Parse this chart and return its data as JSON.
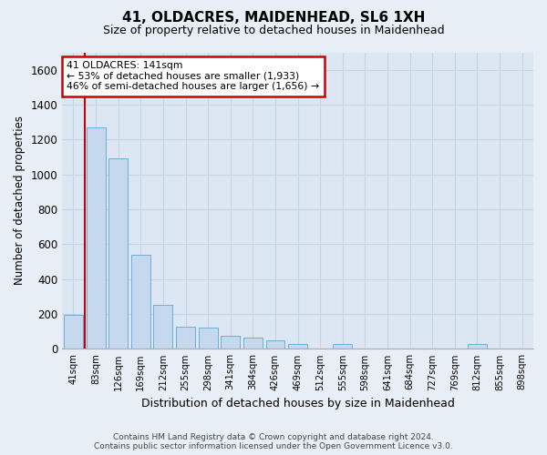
{
  "title": "41, OLDACRES, MAIDENHEAD, SL6 1XH",
  "subtitle": "Size of property relative to detached houses in Maidenhead",
  "xlabel": "Distribution of detached houses by size in Maidenhead",
  "ylabel": "Number of detached properties",
  "footer_line1": "Contains HM Land Registry data © Crown copyright and database right 2024.",
  "footer_line2": "Contains public sector information licensed under the Open Government Licence v3.0.",
  "bar_labels": [
    "41sqm",
    "83sqm",
    "126sqm",
    "169sqm",
    "212sqm",
    "255sqm",
    "298sqm",
    "341sqm",
    "384sqm",
    "426sqm",
    "469sqm",
    "512sqm",
    "555sqm",
    "598sqm",
    "641sqm",
    "684sqm",
    "727sqm",
    "769sqm",
    "812sqm",
    "855sqm",
    "898sqm"
  ],
  "bar_values": [
    195,
    1270,
    1090,
    540,
    250,
    130,
    120,
    75,
    65,
    50,
    30,
    0,
    30,
    0,
    0,
    0,
    0,
    0,
    30,
    0,
    0
  ],
  "bar_color": "#c5d8ee",
  "bar_edge_color": "#6baed6",
  "background_color": "#e8eef6",
  "plot_bg_color": "#dce7f3",
  "grid_color": "#c8d4e4",
  "annotation_text": "41 OLDACRES: 141sqm\n← 53% of detached houses are smaller (1,933)\n46% of semi-detached houses are larger (1,656) →",
  "annotation_box_color": "white",
  "annotation_box_edge_color": "#cc0000",
  "vline_x": 0.5,
  "vline_color": "#cc0000",
  "ylim": [
    0,
    1700
  ],
  "yticks": [
    0,
    200,
    400,
    600,
    800,
    1000,
    1200,
    1400,
    1600
  ]
}
